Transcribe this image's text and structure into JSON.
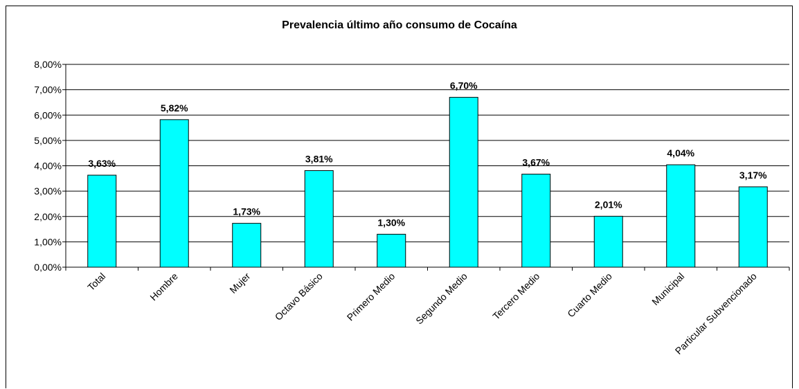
{
  "chart_data": {
    "type": "bar",
    "title": "Prevalencia último año consumo de Cocaína",
    "xlabel": "",
    "ylabel": "",
    "categories": [
      "Total",
      "Hombre",
      "Mujer",
      "Octavo Básico",
      "Primero Medio",
      "Segundo Medio",
      "Tercero Medio",
      "Cuarto Medio",
      "Municipal",
      "Particular Subvencionado"
    ],
    "values": [
      3.63,
      5.82,
      1.73,
      3.81,
      1.3,
      6.7,
      3.67,
      2.01,
      4.04,
      3.17
    ],
    "value_labels": [
      "3,63%",
      "5,82%",
      "1,73%",
      "3,81%",
      "1,30%",
      "6,70%",
      "3,67%",
      "2,01%",
      "4,04%",
      "3,17%"
    ],
    "ylim": [
      0,
      8
    ],
    "yticks": [
      0,
      1,
      2,
      3,
      4,
      5,
      6,
      7,
      8
    ],
    "ytick_labels": [
      "0,00%",
      "1,00%",
      "2,00%",
      "3,00%",
      "4,00%",
      "5,00%",
      "6,00%",
      "7,00%",
      "8,00%"
    ],
    "grid": true,
    "legend": "none",
    "colors": {
      "bar_fill": "#00FFFF",
      "bar_stroke": "#000000",
      "grid": "#000000",
      "text": "#000000"
    }
  }
}
